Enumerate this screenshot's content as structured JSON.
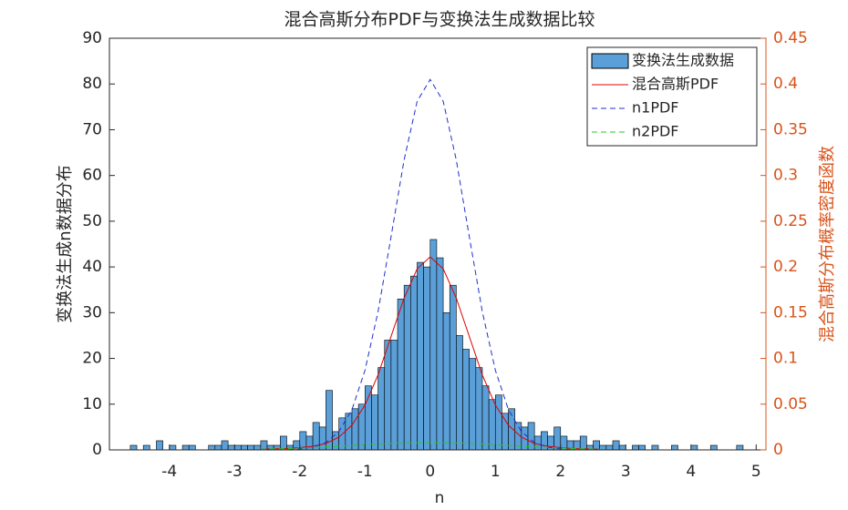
{
  "chart_data": {
    "type": "histogram",
    "title": "混合高斯分布PDF与变换法生成数据比较",
    "x_label": "n",
    "y_label": "变换法生成n数据分布",
    "y2_label": "混合高斯分布概率密度函数",
    "xlim": [
      -4.92,
      5.15
    ],
    "xticks": [
      -4,
      -3,
      -2,
      -1,
      0,
      1,
      2,
      3,
      4,
      5
    ],
    "ylim": [
      0,
      90
    ],
    "yticks": [
      0,
      10,
      20,
      30,
      40,
      50,
      60,
      70,
      80,
      90
    ],
    "y2lim": [
      0,
      0.45
    ],
    "y2ticks": [
      0,
      0.05,
      0.1,
      0.15,
      0.2,
      0.25,
      0.3,
      0.35,
      0.4,
      0.45
    ],
    "y2_color": "#d95319",
    "legend": "northeast",
    "grid": false,
    "bins": [
      -4.6,
      -4.5,
      -4.4,
      -4.3,
      -4.2,
      -4.1,
      -4.0,
      -3.9,
      -3.8,
      -3.7,
      -3.6,
      -3.5,
      -3.4,
      -3.3,
      -3.2,
      -3.1,
      -3.0,
      -2.9,
      -2.8,
      -2.7,
      -2.6,
      -2.5,
      -2.4,
      -2.3,
      -2.2,
      -2.1,
      -2.0,
      -1.9,
      -1.8,
      -1.7,
      -1.6,
      -1.5,
      -1.4,
      -1.3,
      -1.2,
      -1.1,
      -1.0,
      -0.9,
      -0.8,
      -0.7,
      -0.6,
      -0.5,
      -0.4,
      -0.3,
      -0.2,
      -0.1,
      0,
      0.1,
      0.2,
      0.3,
      0.4,
      0.5,
      0.6,
      0.7,
      0.8,
      0.9,
      1.0,
      1.1,
      1.2,
      1.3,
      1.4,
      1.5,
      1.6,
      1.7,
      1.8,
      1.9,
      2.0,
      2.1,
      2.2,
      2.3,
      2.4,
      2.5,
      2.6,
      2.7,
      2.8,
      2.9,
      3.0,
      3.1,
      3.2,
      3.3,
      3.4,
      3.5,
      3.6,
      3.7,
      3.8,
      3.9,
      4.0,
      4.1,
      4.2,
      4.3,
      4.4,
      4.5,
      4.6,
      4.7,
      4.8
    ],
    "series": [
      {
        "name": "变换法生成数据",
        "color": "#5a9fd8",
        "edgecolor": "#000000",
        "values": [
          1,
          0,
          1,
          0,
          2,
          0,
          1,
          0,
          1,
          1,
          0,
          0,
          1,
          1,
          2,
          1,
          1,
          1,
          1,
          1,
          2,
          1,
          1,
          3,
          1,
          2,
          4,
          3,
          6,
          5,
          13,
          4,
          7,
          8,
          9,
          10,
          14,
          12,
          18,
          24,
          24,
          33,
          36,
          38,
          41,
          40,
          46,
          42,
          30,
          36,
          25,
          22,
          20,
          18,
          14,
          11,
          12,
          8,
          9,
          6,
          5,
          6,
          3,
          4,
          3,
          5,
          3,
          2,
          2,
          3,
          1,
          2,
          1,
          1,
          2,
          1,
          0,
          1,
          1,
          0,
          1,
          0,
          0,
          1,
          0,
          0,
          1,
          0,
          0,
          1,
          0,
          0,
          0,
          1
        ]
      },
      {
        "name": "混合高斯PDF",
        "color": "#e00000",
        "dash": "solid",
        "axis": "y2",
        "x": [
          -2.6,
          -2.4,
          -2.2,
          -2.0,
          -1.8,
          -1.6,
          -1.4,
          -1.2,
          -1.0,
          -0.8,
          -0.6,
          -0.4,
          -0.2,
          0,
          0.2,
          0.4,
          0.6,
          0.8,
          1.0,
          1.2,
          1.4,
          1.6,
          1.8,
          2.0,
          2.2,
          2.4,
          2.6
        ],
        "values": [
          0.0008,
          0.0011,
          0.0015,
          0.0025,
          0.004,
          0.007,
          0.014,
          0.027,
          0.049,
          0.082,
          0.124,
          0.166,
          0.198,
          0.211,
          0.198,
          0.166,
          0.124,
          0.082,
          0.049,
          0.027,
          0.014,
          0.007,
          0.004,
          0.0025,
          0.0015,
          0.0011,
          0.0008
        ]
      },
      {
        "name": "n1PDF",
        "color": "#1f2fd0",
        "dash": "dashed",
        "axis": "y2",
        "x": [
          -2.6,
          -2.4,
          -2.2,
          -2.0,
          -1.8,
          -1.6,
          -1.4,
          -1.2,
          -1.0,
          -0.8,
          -0.6,
          -0.4,
          -0.2,
          0,
          0.2,
          0.4,
          0.6,
          0.8,
          1.0,
          1.2,
          1.4,
          1.6,
          1.8,
          2.0,
          2.2,
          2.4,
          2.6
        ],
        "values": [
          0,
          0,
          0,
          0.001,
          0.003,
          0.008,
          0.02,
          0.044,
          0.087,
          0.151,
          0.233,
          0.317,
          0.381,
          0.405,
          0.381,
          0.317,
          0.233,
          0.151,
          0.087,
          0.044,
          0.02,
          0.008,
          0.003,
          0.001,
          0,
          0,
          0
        ]
      },
      {
        "name": "n2PDF",
        "color": "#22cc22",
        "dash": "dashed",
        "axis": "y2",
        "x": [
          -2.6,
          -2.4,
          -2.2,
          -2.0,
          -1.8,
          -1.6,
          -1.4,
          -1.2,
          -1.0,
          -0.8,
          -0.6,
          -0.4,
          -0.2,
          0,
          0.2,
          0.4,
          0.6,
          0.8,
          1.0,
          1.2,
          1.4,
          1.6,
          1.8,
          2.0,
          2.2,
          2.4,
          2.6
        ],
        "values": [
          0.0008,
          0.0011,
          0.0015,
          0.002,
          0.0026,
          0.0033,
          0.004,
          0.0049,
          0.0057,
          0.0064,
          0.0072,
          0.0075,
          0.0079,
          0.008,
          0.0079,
          0.0075,
          0.0072,
          0.0064,
          0.0057,
          0.0049,
          0.004,
          0.0033,
          0.0026,
          0.002,
          0.0015,
          0.0011,
          0.0008
        ]
      }
    ]
  }
}
